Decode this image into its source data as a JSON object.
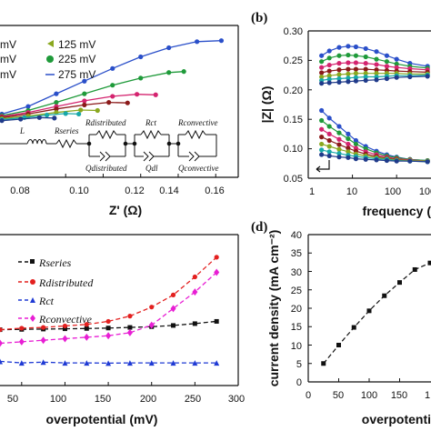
{
  "chart_data": [
    {
      "type": "scatter",
      "panel_label": "",
      "xlabel": "Z' (Ω)",
      "ylabel": "",
      "xlim": [
        0.045,
        0.172
      ],
      "ylim": [
        0,
        0.3
      ],
      "x_ticks": [
        "0.08",
        "0.10",
        "0.12",
        "0.14",
        "0.16"
      ],
      "legend": [
        {
          "label": "mV",
          "color": "#1f3a8a"
        },
        {
          "label": "125 mV",
          "color": "#8aa81f"
        },
        {
          "label": "mV",
          "color": "#18a8a8"
        },
        {
          "label": "225 mV",
          "color": "#1f9a3a"
        },
        {
          "label": "mV",
          "color": "#d4246f"
        },
        {
          "label": "275 mV",
          "color": "#2a4fc9"
        }
      ],
      "circuit": {
        "elements": [
          "L",
          "Rseries",
          "Rdistributed",
          "Qdistributed",
          "Rct",
          "Qdl",
          "Rconvective",
          "Qconvective"
        ]
      },
      "series": [
        {
          "color": "#2a4fc9",
          "x": [
            0.046,
            0.06,
            0.075,
            0.09,
            0.105,
            0.12,
            0.135,
            0.15,
            0.163
          ],
          "y": [
            0.125,
            0.14,
            0.165,
            0.19,
            0.215,
            0.238,
            0.256,
            0.268,
            0.27
          ]
        },
        {
          "color": "#1f9a3a",
          "x": [
            0.046,
            0.06,
            0.075,
            0.09,
            0.105,
            0.12,
            0.135,
            0.143
          ],
          "y": [
            0.122,
            0.132,
            0.148,
            0.165,
            0.182,
            0.196,
            0.207,
            0.209
          ]
        },
        {
          "color": "#d4246f",
          "x": [
            0.046,
            0.06,
            0.075,
            0.09,
            0.105,
            0.118,
            0.128
          ],
          "y": [
            0.12,
            0.128,
            0.14,
            0.151,
            0.16,
            0.164,
            0.163
          ]
        },
        {
          "color": "#8b1a1a",
          "x": [
            0.046,
            0.06,
            0.075,
            0.09,
            0.103,
            0.113
          ],
          "y": [
            0.118,
            0.125,
            0.135,
            0.143,
            0.148,
            0.147
          ]
        },
        {
          "color": "#8aa81f",
          "x": [
            0.046,
            0.06,
            0.075,
            0.088,
            0.097
          ],
          "y": [
            0.116,
            0.121,
            0.128,
            0.133,
            0.132
          ]
        },
        {
          "color": "#18a8a8",
          "x": [
            0.046,
            0.058,
            0.07,
            0.08,
            0.087
          ],
          "y": [
            0.114,
            0.118,
            0.123,
            0.126,
            0.125
          ]
        },
        {
          "color": "#1f3a8a",
          "x": [
            0.046,
            0.056,
            0.066,
            0.074
          ],
          "y": [
            0.112,
            0.115,
            0.118,
            0.117
          ]
        }
      ]
    },
    {
      "type": "line",
      "panel_label": "(b)",
      "xlabel": "frequency (",
      "ylabel": "|Z| (Ω)",
      "xscale": "log",
      "xlim": [
        1,
        600
      ],
      "ylim": [
        0.05,
        0.3
      ],
      "x_ticks": [
        "1",
        "10",
        "100",
        "100"
      ],
      "y_ticks": [
        "0.05",
        "0.10",
        "0.15",
        "0.20",
        "0.25",
        "0.30"
      ],
      "series": [
        {
          "color": "#2a4fc9",
          "x": [
            2,
            3,
            5,
            8,
            12,
            20,
            35,
            60,
            100,
            200,
            500
          ],
          "y": [
            0.258,
            0.266,
            0.272,
            0.274,
            0.273,
            0.27,
            0.265,
            0.258,
            0.252,
            0.245,
            0.24
          ]
        },
        {
          "color": "#1f9a3a",
          "x": [
            2,
            3,
            5,
            8,
            12,
            20,
            35,
            60,
            100,
            200,
            500
          ],
          "y": [
            0.248,
            0.254,
            0.258,
            0.259,
            0.258,
            0.256,
            0.252,
            0.248,
            0.244,
            0.24,
            0.237
          ]
        },
        {
          "color": "#d4246f",
          "x": [
            2,
            3,
            5,
            8,
            12,
            20,
            35,
            60,
            100,
            200,
            500
          ],
          "y": [
            0.238,
            0.242,
            0.245,
            0.246,
            0.246,
            0.245,
            0.243,
            0.24,
            0.238,
            0.236,
            0.234
          ]
        },
        {
          "color": "#8b1a1a",
          "x": [
            2,
            3,
            5,
            8,
            12,
            20,
            35,
            60,
            100,
            200,
            500
          ],
          "y": [
            0.229,
            0.232,
            0.234,
            0.235,
            0.235,
            0.235,
            0.234,
            0.233,
            0.232,
            0.231,
            0.23
          ]
        },
        {
          "color": "#8aa81f",
          "x": [
            2,
            3,
            5,
            8,
            12,
            20,
            35,
            60,
            100,
            200,
            500
          ],
          "y": [
            0.222,
            0.224,
            0.226,
            0.227,
            0.228,
            0.228,
            0.228,
            0.228,
            0.228,
            0.227,
            0.227
          ]
        },
        {
          "color": "#18a8a8",
          "x": [
            2,
            3,
            5,
            8,
            12,
            20,
            35,
            60,
            100,
            200,
            500
          ],
          "y": [
            0.216,
            0.218,
            0.219,
            0.22,
            0.221,
            0.222,
            0.222,
            0.223,
            0.224,
            0.224,
            0.225
          ]
        },
        {
          "color": "#1f3a8a",
          "x": [
            2,
            3,
            5,
            8,
            12,
            20,
            35,
            60,
            100,
            200,
            500
          ],
          "y": [
            0.211,
            0.212,
            0.213,
            0.214,
            0.215,
            0.216,
            0.217,
            0.219,
            0.221,
            0.222,
            0.223
          ]
        },
        {
          "color": "#2a4fc9",
          "x": [
            2,
            3,
            5,
            8,
            12,
            20,
            35,
            60,
            100,
            200,
            500
          ],
          "y": [
            0.165,
            0.152,
            0.138,
            0.125,
            0.114,
            0.104,
            0.096,
            0.09,
            0.086,
            0.082,
            0.08
          ]
        },
        {
          "color": "#1f9a3a",
          "x": [
            2,
            3,
            5,
            8,
            12,
            20,
            35,
            60,
            100,
            200,
            500
          ],
          "y": [
            0.148,
            0.138,
            0.127,
            0.117,
            0.108,
            0.1,
            0.093,
            0.088,
            0.085,
            0.082,
            0.08
          ]
        },
        {
          "color": "#d4246f",
          "x": [
            2,
            3,
            5,
            8,
            12,
            20,
            35,
            60,
            100,
            200,
            500
          ],
          "y": [
            0.133,
            0.125,
            0.116,
            0.108,
            0.101,
            0.095,
            0.09,
            0.086,
            0.083,
            0.081,
            0.079
          ]
        },
        {
          "color": "#8b1a1a",
          "x": [
            2,
            3,
            5,
            8,
            12,
            20,
            35,
            60,
            100,
            200,
            500
          ],
          "y": [
            0.12,
            0.114,
            0.107,
            0.101,
            0.096,
            0.091,
            0.087,
            0.084,
            0.082,
            0.08,
            0.079
          ]
        },
        {
          "color": "#8aa81f",
          "x": [
            2,
            3,
            5,
            8,
            12,
            20,
            35,
            60,
            100,
            200,
            500
          ],
          "y": [
            0.108,
            0.104,
            0.099,
            0.095,
            0.091,
            0.088,
            0.085,
            0.083,
            0.081,
            0.08,
            0.079
          ]
        },
        {
          "color": "#18a8a8",
          "x": [
            2,
            3,
            5,
            8,
            12,
            20,
            35,
            60,
            100,
            200,
            500
          ],
          "y": [
            0.098,
            0.095,
            0.092,
            0.089,
            0.087,
            0.085,
            0.083,
            0.082,
            0.08,
            0.079,
            0.078
          ]
        },
        {
          "color": "#1f3a8a",
          "x": [
            2,
            3,
            5,
            8,
            12,
            20,
            35,
            60,
            100,
            200,
            500
          ],
          "y": [
            0.09,
            0.088,
            0.086,
            0.085,
            0.083,
            0.082,
            0.081,
            0.08,
            0.079,
            0.079,
            0.078
          ]
        }
      ]
    },
    {
      "type": "line",
      "panel_label": "",
      "xlabel": "overpotential (mV)",
      "ylabel": "",
      "xlim": [
        25,
        300
      ],
      "ylim": [
        0,
        1
      ],
      "x_ticks": [
        "50",
        "100",
        "150",
        "200",
        "250",
        "300"
      ],
      "legend": [
        {
          "label": "Rseries",
          "color": "#111111"
        },
        {
          "label": "Rdistributed",
          "color": "#e3201f"
        },
        {
          "label": "Rct",
          "color": "#1f3ad4"
        },
        {
          "label": "Rconvective",
          "color": "#e81fd4"
        }
      ],
      "series": [
        {
          "name": "Rseries",
          "color": "#111111",
          "marker": "square",
          "x": [
            25,
            50,
            75,
            100,
            125,
            150,
            175,
            200,
            225,
            250,
            275
          ],
          "y": [
            0.37,
            0.372,
            0.374,
            0.376,
            0.378,
            0.381,
            0.385,
            0.39,
            0.398,
            0.41,
            0.425
          ]
        },
        {
          "name": "Rdistributed",
          "color": "#e3201f",
          "marker": "circle",
          "x": [
            25,
            50,
            75,
            100,
            125,
            150,
            175,
            200,
            225,
            250,
            275
          ],
          "y": [
            0.37,
            0.38,
            0.385,
            0.395,
            0.405,
            0.425,
            0.46,
            0.52,
            0.6,
            0.72,
            0.85
          ]
        },
        {
          "name": "Rct",
          "color": "#1f3ad4",
          "marker": "triangle",
          "x": [
            25,
            50,
            75,
            100,
            125,
            150,
            175,
            200,
            225,
            250,
            275
          ],
          "y": [
            0.16,
            0.15,
            0.155,
            0.15,
            0.15,
            0.148,
            0.15,
            0.15,
            0.15,
            0.15,
            0.15
          ]
        },
        {
          "name": "Rconvective",
          "color": "#e81fd4",
          "marker": "diamond",
          "x": [
            25,
            50,
            75,
            100,
            125,
            150,
            175,
            200,
            225,
            250,
            275
          ],
          "y": [
            0.28,
            0.29,
            0.3,
            0.31,
            0.32,
            0.33,
            0.35,
            0.4,
            0.51,
            0.62,
            0.75
          ]
        }
      ]
    },
    {
      "type": "line",
      "panel_label": "(d)",
      "xlabel": "overpotenti",
      "ylabel": "current density (mA cm⁻²)",
      "xlim": [
        0,
        200
      ],
      "ylim": [
        0,
        40
      ],
      "x_ticks": [
        "0",
        "50",
        "100",
        "150",
        "1"
      ],
      "y_ticks": [
        "0",
        "5",
        "10",
        "15",
        "20",
        "25",
        "30",
        "35",
        "40"
      ],
      "series": [
        {
          "color": "#111111",
          "marker": "square",
          "x": [
            25,
            50,
            75,
            100,
            125,
            150,
            175,
            200
          ],
          "y": [
            5,
            10,
            14.8,
            19.3,
            23.4,
            27,
            30.5,
            32.3
          ]
        }
      ]
    }
  ]
}
